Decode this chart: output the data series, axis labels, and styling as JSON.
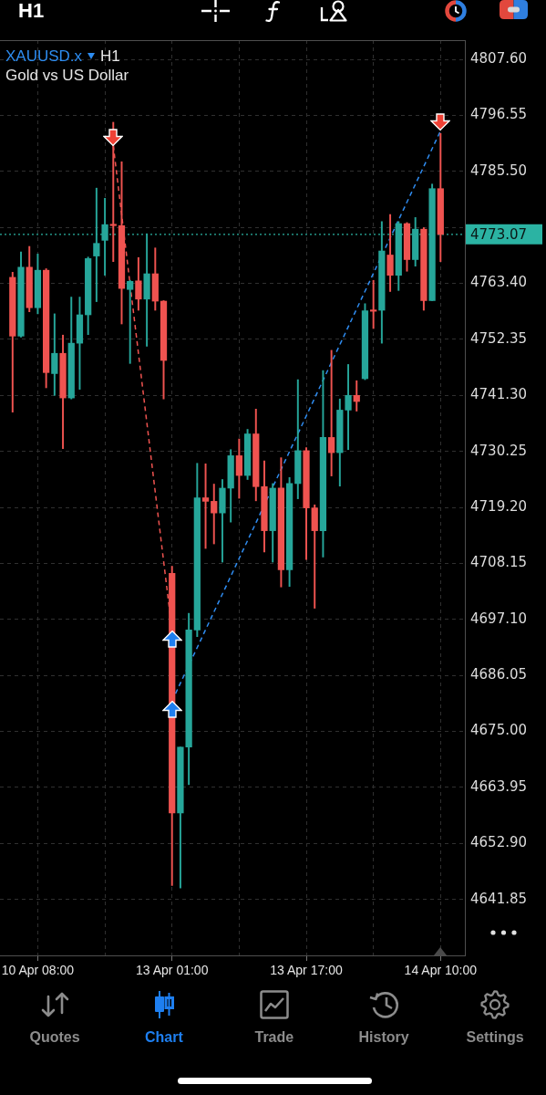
{
  "chart_data": {
    "type": "candlestick",
    "title": "XAUUSD.x",
    "subtitle": "Gold vs US Dollar",
    "annotations": [
      "H1",
      "H1",
      "Quotes",
      "Chart",
      "Trade",
      "History",
      "Settings"
    ],
    "categories": [
      null,
      null,
      null,
      "10 Apr 08:00",
      null,
      null,
      null,
      null,
      null,
      null,
      null,
      null,
      null,
      null,
      null,
      null,
      null,
      null,
      null,
      "13 Apr 01:00",
      null,
      null,
      null,
      null,
      null,
      null,
      null,
      null,
      null,
      null,
      null,
      null,
      null,
      null,
      null,
      "13 Apr 17:00",
      null,
      null,
      null,
      null,
      null,
      null,
      null,
      null,
      null,
      null,
      null,
      null,
      null,
      null,
      null,
      "14 Apr 10:00"
    ],
    "ohlc": [
      [
        4764.6,
        4765.6,
        4738.0,
        4753.0
      ],
      [
        4753.0,
        4769.6,
        4752.8,
        4766.6
      ],
      [
        4766.6,
        4770.7,
        4757.8,
        4758.6
      ],
      [
        4758.6,
        4769.2,
        4757.4,
        4766.0
      ],
      [
        4766.0,
        4766.3,
        4742.8,
        4745.8
      ],
      [
        4745.6,
        4757.4,
        4741.3,
        4749.6
      ],
      [
        4749.6,
        4753.2,
        4730.8,
        4740.8
      ],
      [
        4740.8,
        4760.7,
        4740.6,
        4751.6
      ],
      [
        4751.6,
        4760.7,
        4742.5,
        4757.2
      ],
      [
        4757.2,
        4768.6,
        4753.3,
        4768.3
      ],
      [
        4768.8,
        4782.2,
        4759.8,
        4771.3
      ],
      [
        4771.9,
        4780.2,
        4765.0,
        4775.0
      ],
      [
        4775.0,
        4795.2,
        4767.7,
        4774.8
      ],
      [
        4774.8,
        4787.4,
        4755.4,
        4762.4
      ],
      [
        4762.2,
        4764.0,
        4747.6,
        4763.8
      ],
      [
        4763.9,
        4768.5,
        4758.1,
        4760.3
      ],
      [
        4760.3,
        4773.2,
        4751.0,
        4765.3
      ],
      [
        4765.3,
        4770.4,
        4758.1,
        4759.9
      ],
      [
        4759.9,
        4760.0,
        4740.6,
        4748.2
      ],
      [
        4706.2,
        4707.6,
        4644.6,
        4658.9
      ],
      [
        4658.9,
        4671.9,
        4644.1,
        4671.9
      ],
      [
        4671.9,
        4698.3,
        4664.5,
        4695.0
      ],
      [
        4695.0,
        4727.9,
        4693.7,
        4721.1
      ],
      [
        4721.1,
        4727.8,
        4711.1,
        4720.4
      ],
      [
        4720.4,
        4723.8,
        4712.0,
        4718.1
      ],
      [
        4718.1,
        4724.7,
        4708.4,
        4723.0
      ],
      [
        4723.0,
        4730.6,
        4716.3,
        4729.4
      ],
      [
        4729.4,
        4732.7,
        4721.0,
        4725.5
      ],
      [
        4725.5,
        4734.6,
        4724.7,
        4733.7
      ],
      [
        4733.7,
        4738.6,
        4720.5,
        4723.3
      ],
      [
        4723.3,
        4728.4,
        4710.4,
        4714.6
      ],
      [
        4714.6,
        4723.9,
        4708.4,
        4723.0
      ],
      [
        4723.0,
        4729.0,
        4703.5,
        4706.9
      ],
      [
        4706.9,
        4725.1,
        4703.6,
        4723.9
      ],
      [
        4723.9,
        4744.4,
        4720.9,
        4730.4
      ],
      [
        4730.4,
        4731.0,
        4708.9,
        4719.1
      ],
      [
        4719.1,
        4719.7,
        4699.3,
        4714.6
      ],
      [
        4714.6,
        4746.2,
        4709.4,
        4733.0
      ],
      [
        4733.0,
        4750.2,
        4725.4,
        4730.0
      ],
      [
        4730.0,
        4740.6,
        4723.4,
        4738.4
      ],
      [
        4738.4,
        4747.4,
        4730.6,
        4741.3
      ],
      [
        4741.3,
        4744.2,
        4738.2,
        4740.1
      ],
      [
        4744.6,
        4759.4,
        4744.4,
        4758.0
      ],
      [
        4758.1,
        4764.0,
        4754.5,
        4757.9
      ],
      [
        4758.1,
        4775.6,
        4751.6,
        4769.8
      ],
      [
        4769.0,
        4777.0,
        4761.8,
        4765.0
      ],
      [
        4765.0,
        4775.6,
        4762.0,
        4775.2
      ],
      [
        4775.2,
        4775.4,
        4765.8,
        4768.1
      ],
      [
        4768.1,
        4776.4,
        4766.8,
        4774.1
      ],
      [
        4774.1,
        4774.4,
        4758.1,
        4760.0
      ],
      [
        4760.0,
        4783.0,
        4760.0,
        4782.1
      ],
      [
        4782.1,
        4793.0,
        4767.7,
        4773.07
      ]
    ],
    "colors": [
      "#ef5350",
      "#26a69a",
      "#ef5350",
      "#26a69a",
      "#ef5350",
      "#26a69a",
      "#ef5350",
      "#26a69a",
      "#26a69a",
      "#26a69a",
      "#26a69a",
      "#26a69a",
      "#ef5350",
      "#ef5350",
      "#26a69a",
      "#ef5350",
      "#26a69a",
      "#ef5350",
      "#ef5350",
      "#ef5350",
      "#26a69a",
      "#26a69a",
      "#26a69a",
      "#ef5350",
      "#ef5350",
      "#26a69a",
      "#26a69a",
      "#ef5350",
      "#26a69a",
      "#ef5350",
      "#ef5350",
      "#26a69a",
      "#ef5350",
      "#26a69a",
      "#26a69a",
      "#ef5350",
      "#ef5350",
      "#26a69a",
      "#ef5350",
      "#26a69a",
      "#26a69a",
      "#ef5350",
      "#26a69a",
      "#ef5350",
      "#26a69a",
      "#ef5350",
      "#26a69a",
      "#ef5350",
      "#26a69a",
      "#ef5350",
      "#26a69a",
      "#ef5350"
    ],
    "series": [
      {
        "type": "line",
        "color": "#ef5350",
        "line_style": "dashed",
        "values": [
          null,
          null,
          null,
          null,
          null,
          null,
          null,
          null,
          null,
          null,
          null,
          null,
          4790.6,
          null,
          null,
          null,
          null,
          null,
          null,
          4694.9,
          null,
          null,
          null,
          null,
          null,
          null,
          null,
          null,
          null,
          null,
          null,
          null,
          null,
          null,
          null,
          null,
          null,
          null,
          null,
          null,
          null,
          null,
          null,
          null,
          null,
          null,
          null,
          null,
          null,
          null,
          null,
          null
        ]
      },
      {
        "type": "line",
        "color": "#2f8cf0",
        "line_style": "dashed",
        "values": [
          null,
          null,
          null,
          null,
          null,
          null,
          null,
          null,
          null,
          null,
          null,
          null,
          null,
          null,
          null,
          null,
          null,
          null,
          null,
          4681,
          null,
          null,
          null,
          null,
          null,
          null,
          null,
          null,
          null,
          null,
          null,
          null,
          null,
          null,
          null,
          null,
          null,
          null,
          null,
          null,
          null,
          null,
          null,
          null,
          null,
          null,
          null,
          null,
          null,
          null,
          null,
          4793.5
        ]
      }
    ],
    "ylim": [
      4630.8,
      4811.4
    ],
    "yticks": [
      {
        "value": 4807.6,
        "label": "4807.60"
      },
      4796.55,
      {
        "value": 4785.5,
        "label": "4785.50"
      },
      {
        "value": 4774.45,
        "label": null
      },
      {
        "value": 4763.4,
        "label": "4763.40"
      },
      4752.35,
      {
        "value": 4741.3,
        "label": "4741.30"
      },
      4730.25,
      {
        "value": 4719.2,
        "label": "4719.20"
      },
      4708.15,
      {
        "value": 4697.1,
        "label": "4697.10"
      },
      4686.05,
      {
        "value": 4675,
        "label": "4675.00"
      },
      4663.95,
      {
        "value": 4652.9,
        "label": "4652.90"
      },
      4641.85
    ],
    "ref_lines": [
      {
        "axis": "y",
        "value": 4773.07,
        "label": "4773.07",
        "color": "#2bb3a3",
        "line_style": "dotted"
      }
    ],
    "grid": true
  }
}
